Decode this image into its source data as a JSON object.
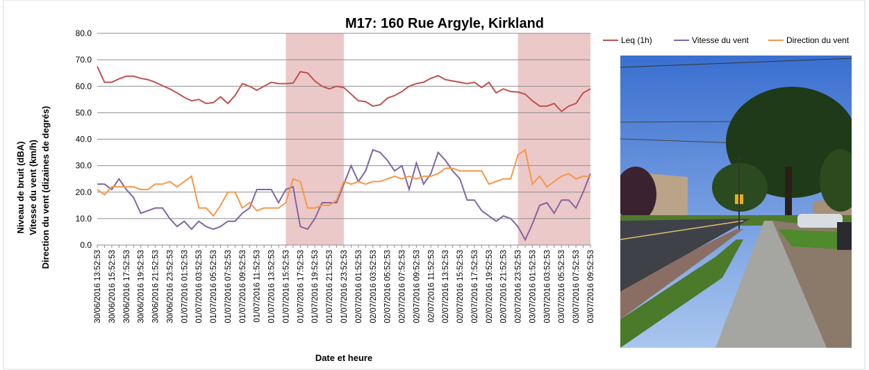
{
  "chart_data": {
    "type": "line",
    "title": "M17: 160 Rue Argyle, Kirkland",
    "x_label": "Date et heure",
    "y_label": [
      "Niveau de bruit (dBA)",
      "Vitesse du vent (km/h)",
      "Direction du vent (dizaines de degrés)"
    ],
    "categories": [
      "30/06/2016 13:52:53",
      null,
      "30/06/2016 15:52:53",
      null,
      "30/06/2016 17:52:53",
      null,
      "30/06/2016 19:52:53",
      null,
      "30/06/2016 21:52:53",
      null,
      "30/06/2016 23:52:53",
      null,
      "01/07/2016 01:52:53",
      null,
      "01/07/2016 03:52:53",
      null,
      "01/07/2016 05:52:53",
      null,
      "01/07/2016 07:52:53",
      null,
      "01/07/2016 09:52:53",
      null,
      "01/07/2016 11:52:53",
      null,
      "01/07/2016 13:52:53",
      null,
      "01/07/2016 15:52:53",
      null,
      "01/07/2016 17:52:53",
      null,
      "01/07/2016 19:52:53",
      null,
      "01/07/2016 21:52:53",
      null,
      "01/07/2016 23:52:53",
      null,
      "02/07/2016 01:52:53",
      null,
      "02/07/2016 03:52:53",
      null,
      "02/07/2016 05:52:53",
      null,
      "02/07/2016 07:52:53",
      null,
      "02/07/2016 09:52:53",
      null,
      "02/07/2016 11:52:53",
      null,
      "02/07/2016 13:52:53",
      null,
      "02/07/2016 15:52:53",
      null,
      "02/07/2016 17:52:53",
      null,
      "02/07/2016 19:52:53",
      null,
      "02/07/2016 21:52:53",
      null,
      "02/07/2016 23:52:53",
      null,
      "03/07/2016 01:52:53",
      null,
      "03/07/2016 03:52:53",
      null,
      "03/07/2016 05:52:53",
      null,
      "03/07/2016 07:52:53",
      null,
      "03/07/2016 09:52:53"
    ],
    "series": [
      {
        "name": "Leq (1h)",
        "color": "#c0504d",
        "values": [
          67.5,
          61.5,
          61.5,
          62.8,
          63.8,
          63.8,
          63,
          62.5,
          61.5,
          60.2,
          59,
          57.5,
          55.8,
          54.5,
          55,
          53.5,
          53.8,
          56,
          53.5,
          56.5,
          61,
          60,
          58.5,
          60,
          61.5,
          61,
          61,
          61.2,
          65.5,
          65,
          62,
          60,
          59,
          60,
          59.5,
          57,
          54.5,
          54.2,
          52.5,
          53,
          55.5,
          56.5,
          58,
          60,
          61,
          61.5,
          63,
          64,
          62.5,
          62,
          61.5,
          61,
          61.5,
          59.5,
          61.5,
          57.5,
          59,
          58,
          57.8,
          57,
          54.5,
          52.5,
          52.5,
          53.5,
          50.5,
          52.5,
          53.5,
          57.5,
          59
        ]
      },
      {
        "name": "Vitesse du vent",
        "color": "#8064a2",
        "values": [
          23,
          23,
          21,
          25,
          21,
          18,
          12,
          13,
          14,
          14,
          10,
          7,
          9,
          6,
          9,
          7,
          6,
          7,
          9,
          9,
          12,
          14,
          21,
          21,
          21,
          16,
          21,
          22,
          7,
          6,
          10,
          16,
          16,
          16,
          23,
          30,
          24,
          28,
          36,
          35,
          32,
          28,
          30,
          21,
          31,
          23,
          27,
          35,
          32,
          28,
          25,
          17,
          17,
          13,
          11,
          9,
          11,
          10,
          7,
          2,
          8,
          15,
          16,
          12,
          17,
          17,
          14,
          20,
          27
        ]
      },
      {
        "name": "Direction du vent",
        "color": "#f79646",
        "values": [
          21,
          19,
          22,
          22,
          22,
          22,
          21,
          21,
          23,
          23,
          24,
          22,
          24,
          26,
          14,
          14,
          11,
          15,
          20,
          20,
          14,
          16,
          13,
          14,
          14,
          14,
          16,
          25,
          24,
          14,
          14,
          15,
          15,
          17,
          24,
          23,
          24,
          23,
          24,
          24,
          25,
          26,
          25,
          26,
          25,
          26,
          26,
          27,
          29,
          29,
          28,
          28,
          28,
          28,
          23,
          24,
          25,
          25,
          34,
          36,
          23,
          26,
          22,
          24,
          26,
          27,
          25,
          26,
          26
        ]
      }
    ],
    "ylim": [
      0,
      80
    ],
    "yticks": [
      {
        "value": 0,
        "label": "0.0"
      },
      {
        "value": 10,
        "label": "10.0"
      },
      {
        "value": 20,
        "label": "20.0"
      },
      {
        "value": 30,
        "label": "30.0"
      },
      {
        "value": 40,
        "label": "40.0"
      },
      {
        "value": 50,
        "label": "50.0"
      },
      {
        "value": 60,
        "label": "60.0"
      },
      {
        "value": 70,
        "label": "70.0"
      },
      {
        "value": 80,
        "label": "80.0"
      }
    ],
    "grid": true,
    "legend": "top-right",
    "shaded_periods": [
      [
        "01/07/2016 15:52:53",
        "01/07/2016 23:52:53"
      ],
      [
        "02/07/2016 23:52:53",
        "03/07/2016 09:52:53"
      ]
    ],
    "shade_color": "#ecc9c9"
  }
}
